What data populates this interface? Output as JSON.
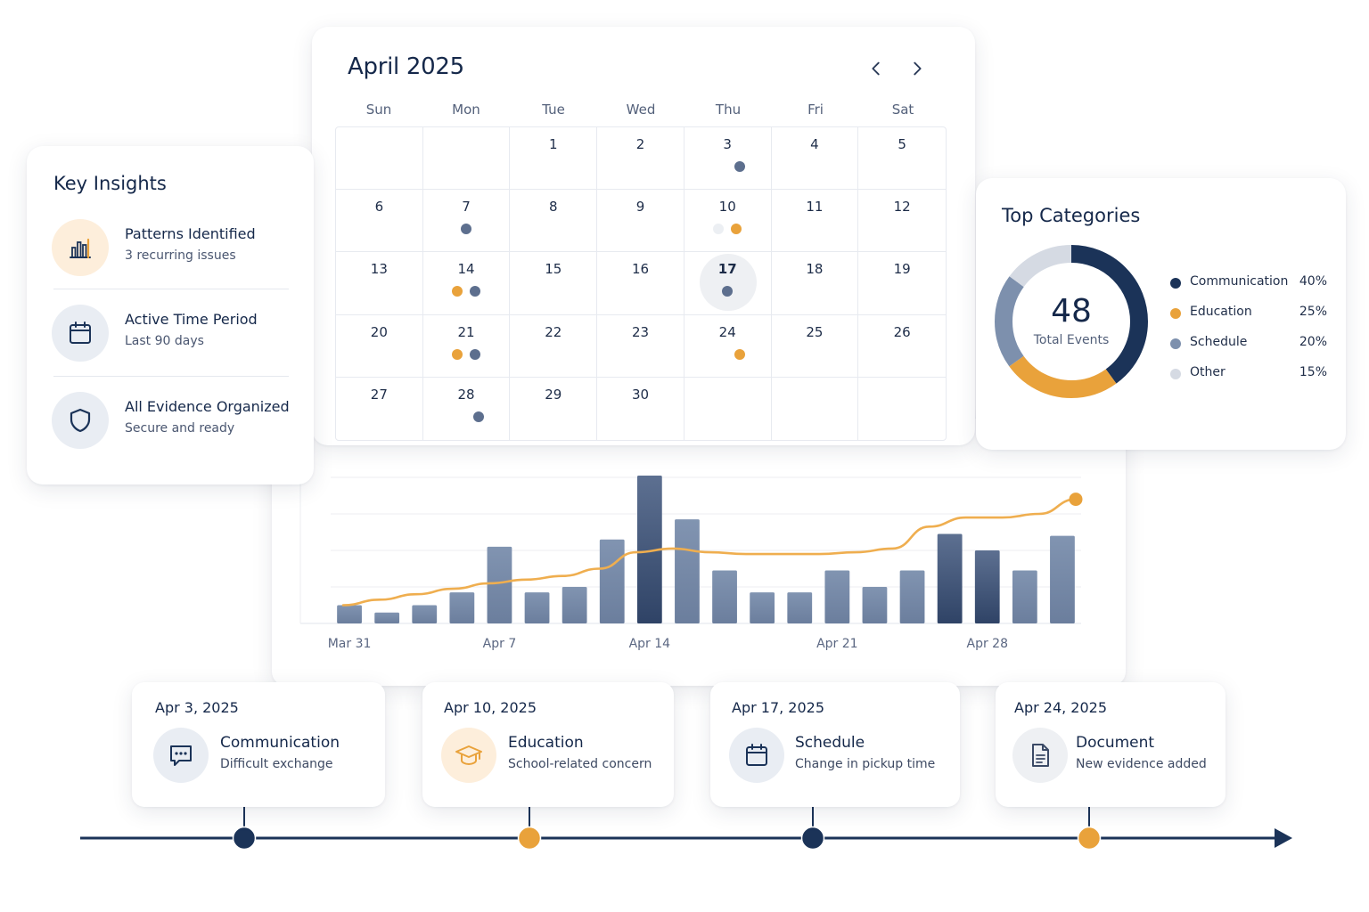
{
  "colors": {
    "navy": "#1b3358",
    "orange": "#e9a23b",
    "slate": "#6e809d",
    "light": "#d8dde5",
    "bar": "#7d90ad",
    "bar_dark": "#3d5278"
  },
  "calendar": {
    "title": "April 2025",
    "prev_icon": "chevron-left-icon",
    "next_icon": "chevron-right-icon",
    "weekdays": [
      "Sun",
      "Mon",
      "Tue",
      "Wed",
      "Thu",
      "Fri",
      "Sat"
    ],
    "today": "17",
    "cells": [
      {
        "day": "",
        "dots": []
      },
      {
        "day": "",
        "dots": []
      },
      {
        "day": "1",
        "dots": []
      },
      {
        "day": "2",
        "dots": []
      },
      {
        "day": "3",
        "dots": [
          "slate"
        ]
      },
      {
        "day": "4",
        "dots": []
      },
      {
        "day": "5",
        "dots": []
      },
      {
        "day": "6",
        "dots": []
      },
      {
        "day": "7",
        "dots": [
          "slate"
        ]
      },
      {
        "day": "8",
        "dots": []
      },
      {
        "day": "9",
        "dots": []
      },
      {
        "day": "10",
        "dots": [
          "light",
          "orange"
        ]
      },
      {
        "day": "11",
        "dots": []
      },
      {
        "day": "12",
        "dots": []
      },
      {
        "day": "13",
        "dots": []
      },
      {
        "day": "14",
        "dots": [
          "orange",
          "slate"
        ]
      },
      {
        "day": "15",
        "dots": []
      },
      {
        "day": "16",
        "dots": []
      },
      {
        "day": "17",
        "dots": [
          "slate"
        ]
      },
      {
        "day": "18",
        "dots": []
      },
      {
        "day": "19",
        "dots": []
      },
      {
        "day": "20",
        "dots": []
      },
      {
        "day": "21",
        "dots": [
          "orange",
          "slate"
        ]
      },
      {
        "day": "22",
        "dots": []
      },
      {
        "day": "23",
        "dots": []
      },
      {
        "day": "24",
        "dots": [
          "orange"
        ]
      },
      {
        "day": "25",
        "dots": []
      },
      {
        "day": "26",
        "dots": []
      },
      {
        "day": "27",
        "dots": []
      },
      {
        "day": "28",
        "dots": [
          "slate"
        ]
      },
      {
        "day": "29",
        "dots": []
      },
      {
        "day": "30",
        "dots": []
      },
      {
        "day": "",
        "dots": []
      },
      {
        "day": "",
        "dots": []
      },
      {
        "day": "",
        "dots": []
      }
    ]
  },
  "chart_data": {
    "type": "bar",
    "x_ticks": [
      "Mar 31",
      "Apr 7",
      "Apr 14",
      "Apr 21",
      "Apr 28"
    ],
    "tick_after_bar": [
      0,
      4,
      8,
      13,
      17
    ],
    "ylim": [
      0,
      8
    ],
    "grid": true,
    "bars": [
      1.0,
      0.6,
      1.0,
      1.7,
      4.2,
      1.7,
      2.0,
      4.6,
      8.1,
      5.7,
      2.9,
      1.7,
      1.7,
      2.9,
      2.0,
      2.9,
      4.9,
      4.0,
      2.9,
      4.8
    ],
    "dark_bars": [
      8,
      16,
      17
    ],
    "trend": [
      1.0,
      1.3,
      1.6,
      1.9,
      2.2,
      2.4,
      2.6,
      3.0,
      3.9,
      4.1,
      3.9,
      3.8,
      3.8,
      3.8,
      3.9,
      4.1,
      5.3,
      5.8,
      5.8,
      6.0,
      6.8
    ]
  },
  "insights": {
    "title": "Key Insights",
    "items": [
      {
        "icon": "bar-chart-icon",
        "title": "Patterns Identified",
        "subtitle": "3 recurring issues"
      },
      {
        "icon": "calendar-icon",
        "title": "Active Time Period",
        "subtitle": "Last 90 days"
      },
      {
        "icon": "shield-icon",
        "title": "All Evidence Organized",
        "subtitle": "Secure and ready"
      }
    ]
  },
  "categories": {
    "title": "Top Categories",
    "total": "48",
    "total_label": "Total Events",
    "items": [
      {
        "name": "Communication",
        "pct": "40%",
        "value": 40,
        "color": "#1b3358"
      },
      {
        "name": "Education",
        "pct": "25%",
        "value": 25,
        "color": "#e9a23b"
      },
      {
        "name": "Schedule",
        "pct": "20%",
        "value": 20,
        "color": "#7d90ad"
      },
      {
        "name": "Other",
        "pct": "15%",
        "value": 15,
        "color": "#d5dae3"
      }
    ]
  },
  "timeline": {
    "events": [
      {
        "date": "Apr 3, 2025",
        "icon": "chat-icon",
        "title": "Communication",
        "subtitle": "Difficult exchange",
        "marker": "navy"
      },
      {
        "date": "Apr 10, 2025",
        "icon": "graduation-cap-icon",
        "title": "Education",
        "subtitle": "School-related concern",
        "marker": "orange"
      },
      {
        "date": "Apr 17, 2025",
        "icon": "calendar-icon",
        "title": "Schedule",
        "subtitle": "Change in pickup time",
        "marker": "navy"
      },
      {
        "date": "Apr 24, 2025",
        "icon": "document-icon",
        "title": "Document",
        "subtitle": "New evidence added",
        "marker": "orange"
      }
    ]
  }
}
